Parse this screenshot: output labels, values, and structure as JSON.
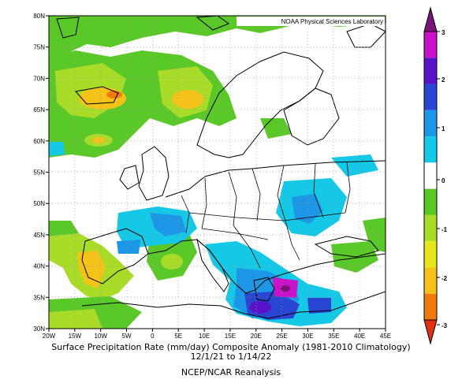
{
  "map": {
    "credit": "NOAA Physical Sciences Laboratory",
    "lat_labels": [
      "80N",
      "75N",
      "70N",
      "65N",
      "60N",
      "55N",
      "50N",
      "45N",
      "40N",
      "35N",
      "30N"
    ],
    "lon_labels": [
      "20W",
      "15W",
      "10W",
      "5W",
      "0",
      "5E",
      "10E",
      "15E",
      "20E",
      "25E",
      "30E",
      "35E",
      "40E",
      "45E"
    ],
    "extent": {
      "lon": [
        -20,
        45
      ],
      "lat": [
        30,
        80
      ]
    }
  },
  "colorbar": {
    "tick_labels": [
      "3",
      "2",
      "1",
      "0",
      "-1",
      "-2",
      "-3"
    ],
    "colors": {
      "neg3": "#e03010",
      "neg2p5": "#f07a10",
      "neg2": "#f5c21a",
      "neg1p5": "#e6e61e",
      "neg1": "#a8dc28",
      "neg0p5": "#5ac828",
      "zero": "#ffffff",
      "pos0p5": "#14c8e6",
      "pos1": "#1e96e6",
      "pos1p5": "#2846d2",
      "pos2": "#5a14c8",
      "pos2p5": "#c814c8",
      "pos3": "#7a1478"
    }
  },
  "caption": {
    "line1": "Surface Precipitation Rate (mm/day) Composite Anomaly (1981-2010 Climatology)",
    "line2": "12/1/21  to 1/14/22",
    "line3": "NCEP/NCAR Reanalysis"
  }
}
